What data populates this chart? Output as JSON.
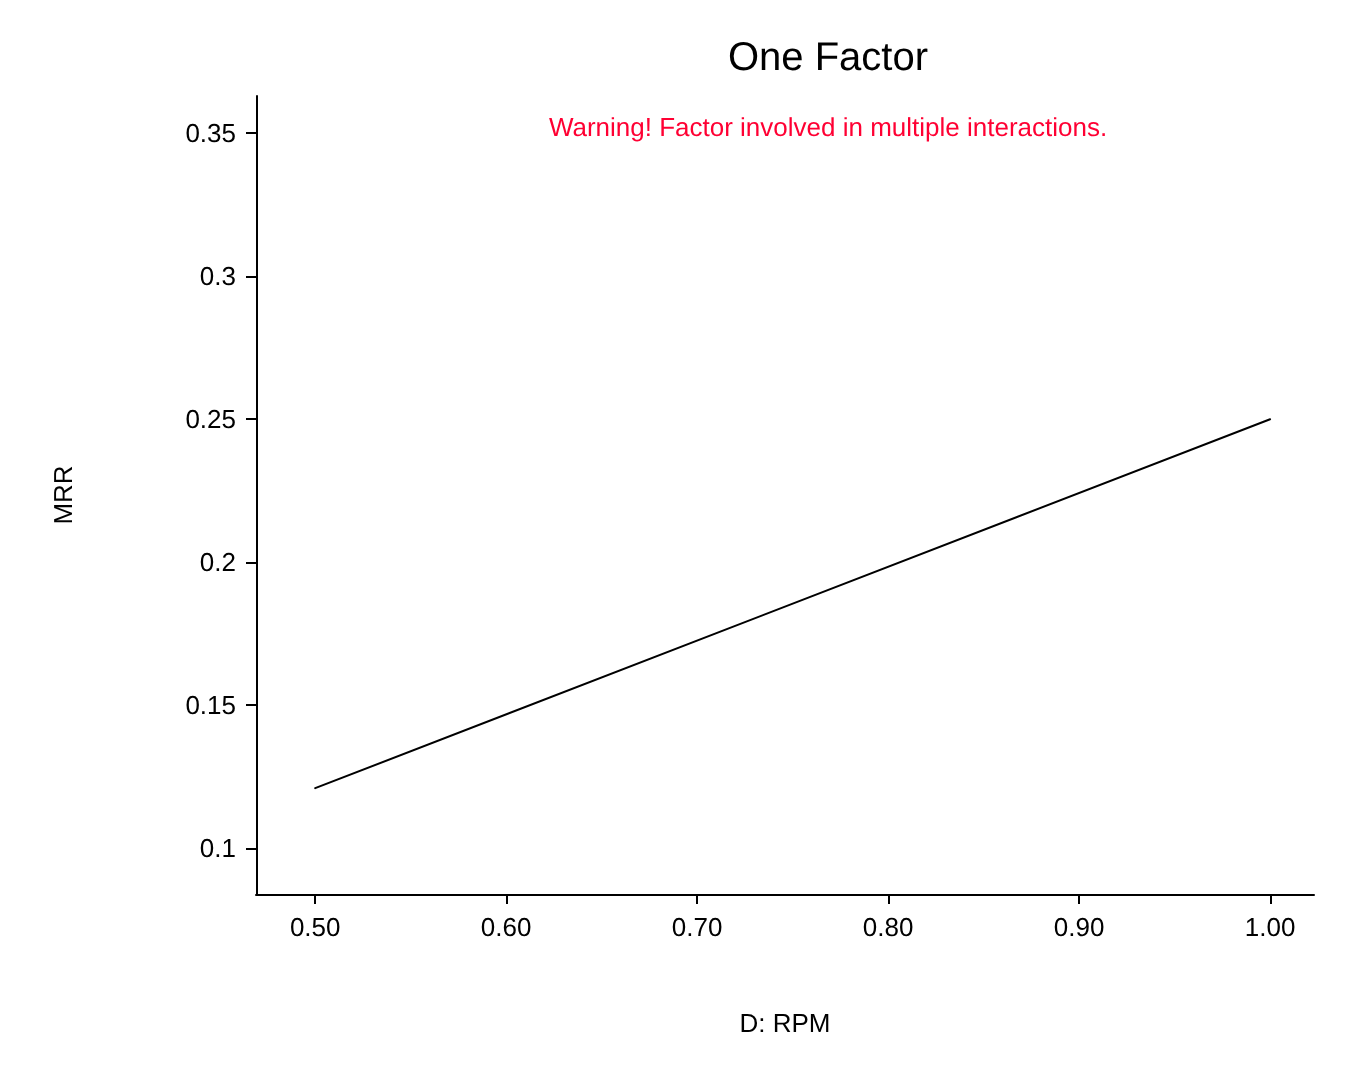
{
  "chart_data": {
    "type": "line",
    "title": "One Factor",
    "xlabel": "D: RPM",
    "ylabel": "MRR",
    "annotations": [
      "Warning! Factor involved in multiple interactions."
    ],
    "x": [
      0.5,
      1.0
    ],
    "series": [
      {
        "color": "#000000",
        "values": [
          0.121,
          0.25
        ]
      }
    ],
    "xlim": [
      0.469,
      1.023
    ],
    "xticks": [
      {
        "value": 0.5,
        "label": "0.50"
      },
      {
        "value": 0.6,
        "label": "0.60"
      },
      {
        "value": 0.7,
        "label": "0.70"
      },
      {
        "value": 0.8,
        "label": "0.80"
      },
      {
        "value": 0.9,
        "label": "0.90"
      },
      {
        "value": 1.0,
        "label": "1.00"
      }
    ],
    "ylim": [
      0.084,
      0.363
    ],
    "yticks": [
      0.1,
      0.15,
      0.2,
      0.25,
      0.3,
      0.35
    ],
    "grid": false,
    "marker": "none",
    "line_style": "solid"
  }
}
